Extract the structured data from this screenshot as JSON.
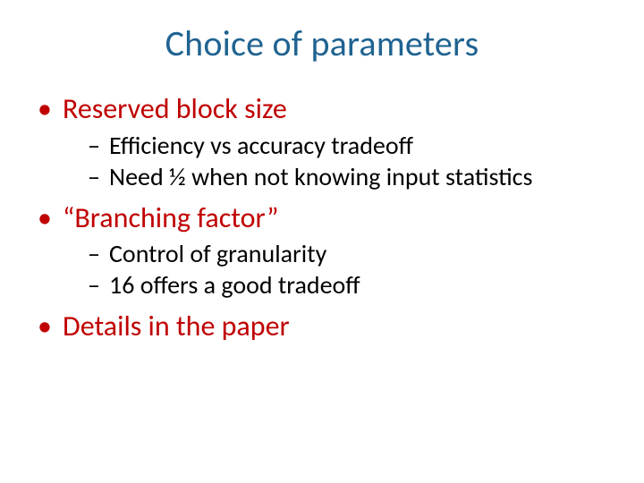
{
  "colors": {
    "title": "#1f6391",
    "bullet_head": "#c00000",
    "sub_bullet": "#000000",
    "background": "#ffffff",
    "level1_marker": "#c00000",
    "level2_marker": "#000000"
  },
  "typography": {
    "title_fontsize": 40,
    "level1_fontsize": 32,
    "level2_fontsize": 28,
    "font_family": "Calibri"
  },
  "markers": {
    "level1": "•",
    "level2": "–"
  },
  "slide": {
    "title": "Choice of parameters",
    "items": [
      {
        "label": "Reserved block size",
        "subitems": [
          "Efficiency vs accuracy tradeoff",
          "Need ½ when not knowing input statistics"
        ]
      },
      {
        "label": "“Branching factor”",
        "subitems": [
          "Control of granularity",
          "16 offers a good tradeoff"
        ]
      },
      {
        "label": "Details in the paper",
        "subitems": []
      }
    ]
  }
}
